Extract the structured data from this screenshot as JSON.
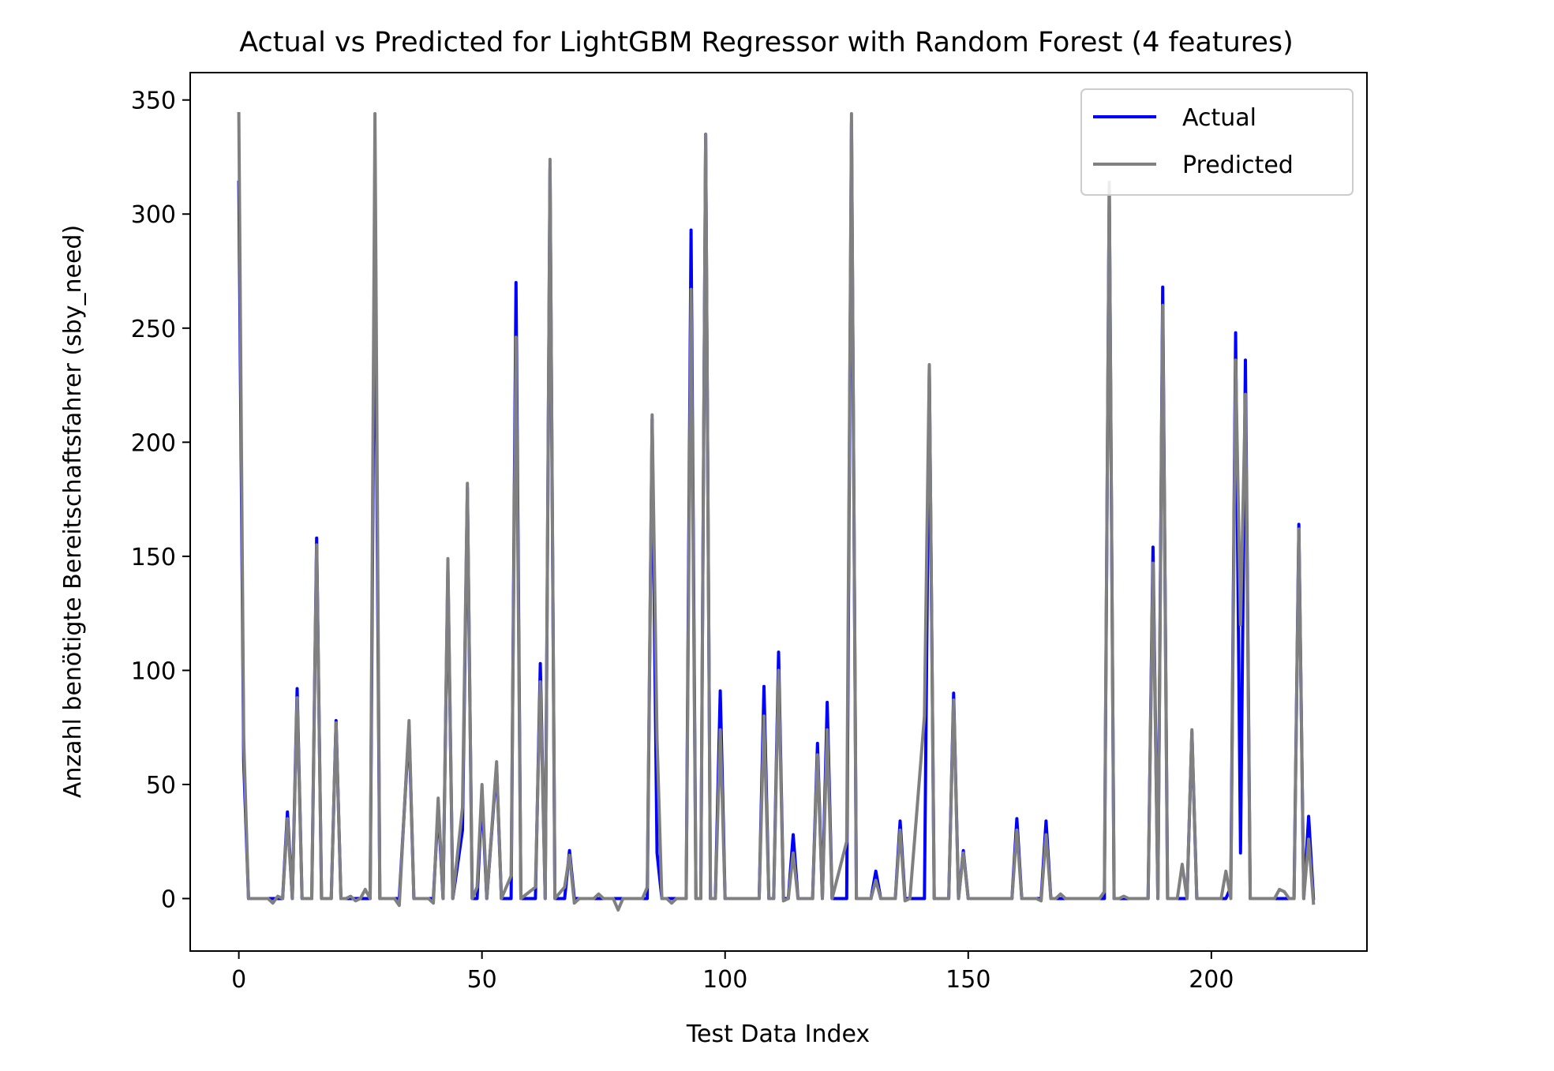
{
  "chart_data": {
    "type": "line",
    "title": "Actual vs Predicted for LightGBM Regressor with Random Forest (4 features)",
    "xlabel": "Test Data Index",
    "ylabel": "Anzahl benötigte Bereitschaftsfahrer (sby_need)",
    "xlim": [
      -10,
      232
    ],
    "ylim": [
      -23,
      362
    ],
    "xticks": [
      0,
      50,
      100,
      150,
      200
    ],
    "yticks": [
      0,
      50,
      100,
      150,
      200,
      250,
      300,
      350
    ],
    "grid": false,
    "legend_position": "top-right",
    "colors": {
      "Actual": "#0000ff",
      "Predicted": "#808080"
    },
    "series": [
      {
        "name": "Actual",
        "points": [
          [
            0,
            314
          ],
          [
            1,
            60
          ],
          [
            2,
            0
          ],
          [
            9,
            0
          ],
          [
            10,
            38
          ],
          [
            11,
            0
          ],
          [
            12,
            92
          ],
          [
            13,
            0
          ],
          [
            15,
            0
          ],
          [
            16,
            158
          ],
          [
            17,
            0
          ],
          [
            19,
            0
          ],
          [
            20,
            78
          ],
          [
            21,
            0
          ],
          [
            27,
            0
          ],
          [
            28,
            300
          ],
          [
            29,
            0
          ],
          [
            33,
            0
          ],
          [
            35,
            75
          ],
          [
            36,
            0
          ],
          [
            40,
            0
          ],
          [
            41,
            40
          ],
          [
            42,
            0
          ],
          [
            43,
            145
          ],
          [
            44,
            0
          ],
          [
            46,
            30
          ],
          [
            47,
            180
          ],
          [
            48,
            0
          ],
          [
            49,
            0
          ],
          [
            50,
            45
          ],
          [
            51,
            0
          ],
          [
            53,
            58
          ],
          [
            54,
            0
          ],
          [
            56,
            0
          ],
          [
            57,
            270
          ],
          [
            58,
            0
          ],
          [
            61,
            0
          ],
          [
            62,
            103
          ],
          [
            63,
            0
          ],
          [
            64,
            320
          ],
          [
            65,
            0
          ],
          [
            67,
            0
          ],
          [
            68,
            21
          ],
          [
            69,
            0
          ],
          [
            84,
            0
          ],
          [
            85,
            210
          ],
          [
            86,
            20
          ],
          [
            87,
            0
          ],
          [
            92,
            0
          ],
          [
            93,
            293
          ],
          [
            94,
            0
          ],
          [
            95,
            0
          ],
          [
            96,
            335
          ],
          [
            97,
            0
          ],
          [
            98,
            0
          ],
          [
            99,
            91
          ],
          [
            100,
            0
          ],
          [
            107,
            0
          ],
          [
            108,
            93
          ],
          [
            109,
            0
          ],
          [
            110,
            0
          ],
          [
            111,
            108
          ],
          [
            112,
            0
          ],
          [
            113,
            0
          ],
          [
            114,
            28
          ],
          [
            115,
            0
          ],
          [
            118,
            0
          ],
          [
            119,
            68
          ],
          [
            120,
            0
          ],
          [
            121,
            86
          ],
          [
            122,
            0
          ],
          [
            125,
            0
          ],
          [
            126,
            340
          ],
          [
            127,
            0
          ],
          [
            130,
            0
          ],
          [
            131,
            12
          ],
          [
            132,
            0
          ],
          [
            135,
            0
          ],
          [
            136,
            34
          ],
          [
            137,
            0
          ],
          [
            141,
            0
          ],
          [
            142,
            233
          ],
          [
            143,
            0
          ],
          [
            146,
            0
          ],
          [
            147,
            90
          ],
          [
            148,
            0
          ],
          [
            149,
            21
          ],
          [
            150,
            0
          ],
          [
            159,
            0
          ],
          [
            160,
            35
          ],
          [
            161,
            0
          ],
          [
            165,
            0
          ],
          [
            166,
            34
          ],
          [
            167,
            0
          ],
          [
            178,
            0
          ],
          [
            179,
            313
          ],
          [
            180,
            0
          ],
          [
            187,
            0
          ],
          [
            188,
            154
          ],
          [
            189,
            0
          ],
          [
            190,
            268
          ],
          [
            191,
            0
          ],
          [
            195,
            0
          ],
          [
            196,
            73
          ],
          [
            197,
            0
          ],
          [
            203,
            0
          ],
          [
            204,
            5
          ],
          [
            205,
            248
          ],
          [
            206,
            20
          ],
          [
            207,
            236
          ],
          [
            208,
            0
          ],
          [
            217,
            0
          ],
          [
            218,
            164
          ],
          [
            219,
            0
          ],
          [
            220,
            36
          ],
          [
            221,
            0
          ]
        ]
      },
      {
        "name": "Predicted",
        "points": [
          [
            0,
            344
          ],
          [
            1,
            70
          ],
          [
            2,
            0
          ],
          [
            6,
            0
          ],
          [
            7,
            -2
          ],
          [
            8,
            1
          ],
          [
            9,
            0
          ],
          [
            10,
            35
          ],
          [
            11,
            0
          ],
          [
            12,
            88
          ],
          [
            13,
            0
          ],
          [
            15,
            0
          ],
          [
            16,
            155
          ],
          [
            17,
            0
          ],
          [
            19,
            0
          ],
          [
            20,
            77
          ],
          [
            21,
            0
          ],
          [
            22,
            0
          ],
          [
            23,
            1
          ],
          [
            24,
            -1
          ],
          [
            25,
            0
          ],
          [
            26,
            4
          ],
          [
            27,
            0
          ],
          [
            28,
            344
          ],
          [
            29,
            0
          ],
          [
            32,
            0
          ],
          [
            33,
            -3
          ],
          [
            35,
            78
          ],
          [
            36,
            0
          ],
          [
            39,
            0
          ],
          [
            40,
            -2
          ],
          [
            41,
            44
          ],
          [
            42,
            0
          ],
          [
            43,
            149
          ],
          [
            44,
            0
          ],
          [
            46,
            40
          ],
          [
            47,
            182
          ],
          [
            48,
            0
          ],
          [
            49,
            5
          ],
          [
            50,
            50
          ],
          [
            51,
            0
          ],
          [
            53,
            60
          ],
          [
            54,
            0
          ],
          [
            56,
            10
          ],
          [
            57,
            246
          ],
          [
            58,
            0
          ],
          [
            61,
            5
          ],
          [
            62,
            95
          ],
          [
            63,
            0
          ],
          [
            64,
            324
          ],
          [
            65,
            0
          ],
          [
            67,
            5
          ],
          [
            68,
            19
          ],
          [
            69,
            -2
          ],
          [
            70,
            0
          ],
          [
            73,
            0
          ],
          [
            74,
            2
          ],
          [
            75,
            0
          ],
          [
            77,
            0
          ],
          [
            78,
            -5
          ],
          [
            79,
            0
          ],
          [
            83,
            0
          ],
          [
            84,
            5
          ],
          [
            85,
            212
          ],
          [
            86,
            70
          ],
          [
            87,
            0
          ],
          [
            88,
            0
          ],
          [
            89,
            -2
          ],
          [
            90,
            0
          ],
          [
            92,
            0
          ],
          [
            93,
            267
          ],
          [
            94,
            0
          ],
          [
            95,
            0
          ],
          [
            96,
            335
          ],
          [
            97,
            0
          ],
          [
            98,
            0
          ],
          [
            99,
            74
          ],
          [
            100,
            0
          ],
          [
            107,
            0
          ],
          [
            108,
            80
          ],
          [
            109,
            0
          ],
          [
            110,
            0
          ],
          [
            111,
            100
          ],
          [
            112,
            -1
          ],
          [
            113,
            0
          ],
          [
            114,
            20
          ],
          [
            115,
            0
          ],
          [
            118,
            0
          ],
          [
            119,
            63
          ],
          [
            120,
            0
          ],
          [
            121,
            74
          ],
          [
            122,
            0
          ],
          [
            125,
            25
          ],
          [
            126,
            344
          ],
          [
            127,
            0
          ],
          [
            130,
            0
          ],
          [
            131,
            8
          ],
          [
            132,
            0
          ],
          [
            135,
            0
          ],
          [
            136,
            30
          ],
          [
            137,
            -1
          ],
          [
            138,
            0
          ],
          [
            141,
            80
          ],
          [
            142,
            234
          ],
          [
            143,
            0
          ],
          [
            146,
            0
          ],
          [
            147,
            87
          ],
          [
            148,
            0
          ],
          [
            149,
            20
          ],
          [
            150,
            0
          ],
          [
            159,
            0
          ],
          [
            160,
            30
          ],
          [
            161,
            0
          ],
          [
            164,
            0
          ],
          [
            165,
            -1
          ],
          [
            166,
            28
          ],
          [
            167,
            0
          ],
          [
            168,
            0
          ],
          [
            169,
            2
          ],
          [
            170,
            0
          ],
          [
            177,
            0
          ],
          [
            178,
            3
          ],
          [
            179,
            314
          ],
          [
            180,
            0
          ],
          [
            181,
            0
          ],
          [
            182,
            1
          ],
          [
            183,
            0
          ],
          [
            187,
            0
          ],
          [
            188,
            147
          ],
          [
            189,
            0
          ],
          [
            190,
            260
          ],
          [
            191,
            0
          ],
          [
            193,
            0
          ],
          [
            194,
            15
          ],
          [
            195,
            0
          ],
          [
            196,
            74
          ],
          [
            197,
            0
          ],
          [
            202,
            0
          ],
          [
            203,
            12
          ],
          [
            204,
            0
          ],
          [
            205,
            236
          ],
          [
            206,
            120
          ],
          [
            207,
            221
          ],
          [
            208,
            0
          ],
          [
            211,
            0
          ],
          [
            213,
            0
          ],
          [
            214,
            4
          ],
          [
            215,
            3
          ],
          [
            216,
            0
          ],
          [
            217,
            0
          ],
          [
            218,
            162
          ],
          [
            219,
            0
          ],
          [
            220,
            26
          ],
          [
            221,
            -2
          ]
        ]
      }
    ]
  }
}
